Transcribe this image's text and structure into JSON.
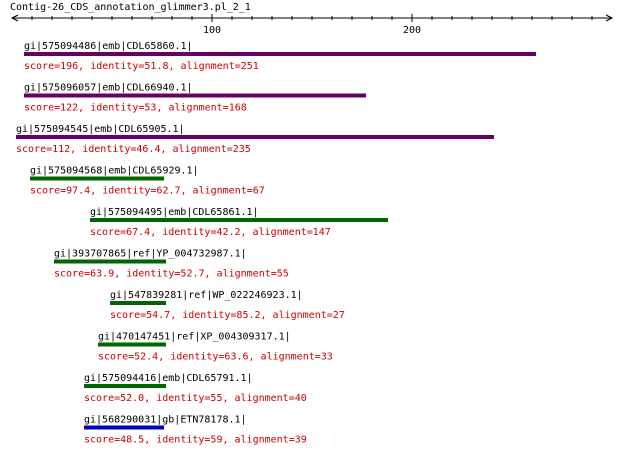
{
  "title": "Contig-26_CDS_annotation_glimmer3.pl_2_1",
  "axis": {
    "min": 0,
    "max": 300,
    "ticks": [
      "100",
      "200"
    ]
  },
  "colors": {
    "purple": "#660066",
    "green": "#006600",
    "blue": "#0000cc",
    "score_text": "#cc0000",
    "label_text": "#000000"
  },
  "hits": [
    {
      "name": "gi|575094486|emb|CDL65860.1|",
      "info": "score=196, identity=51.8, alignment=251",
      "start": 6,
      "end": 262,
      "color": "purple"
    },
    {
      "name": "gi|575096057|emb|CDL66940.1|",
      "info": "score=122, identity=53, alignment=168",
      "start": 6,
      "end": 177,
      "color": "purple"
    },
    {
      "name": "gi|575094545|emb|CDL65905.1|",
      "info": "score=112, identity=46.4, alignment=235",
      "start": 2,
      "end": 241,
      "color": "purple"
    },
    {
      "name": "gi|575094568|emb|CDL65929.1|",
      "info": "score=97.4, identity=62.7, alignment=67",
      "start": 9,
      "end": 76,
      "color": "green"
    },
    {
      "name": "gi|575094495|emb|CDL65861.1|",
      "info": "score=67.4, identity=42.2, alignment=147",
      "start": 39,
      "end": 188,
      "color": "green"
    },
    {
      "name": "gi|393707865|ref|YP_004732987.1|",
      "info": "score=63.9, identity=52.7, alignment=55",
      "start": 21,
      "end": 77,
      "color": "green"
    },
    {
      "name": "gi|547839281|ref|WP_022246923.1|",
      "info": "score=54.7, identity=85.2, alignment=27",
      "start": 49,
      "end": 77,
      "color": "green"
    },
    {
      "name": "gi|470147451|ref|XP_004309317.1|",
      "info": "score=52.4, identity=63.6, alignment=33",
      "start": 43,
      "end": 77,
      "color": "green"
    },
    {
      "name": "gi|575094416|emb|CDL65791.1|",
      "info": "score=52.0, identity=55, alignment=40",
      "start": 36,
      "end": 77,
      "color": "green"
    },
    {
      "name": "gi|568290031|gb|ETN78178.1|",
      "info": "score=48.5, identity=59, alignment=39",
      "start": 36,
      "end": 76,
      "color": "blue"
    }
  ]
}
